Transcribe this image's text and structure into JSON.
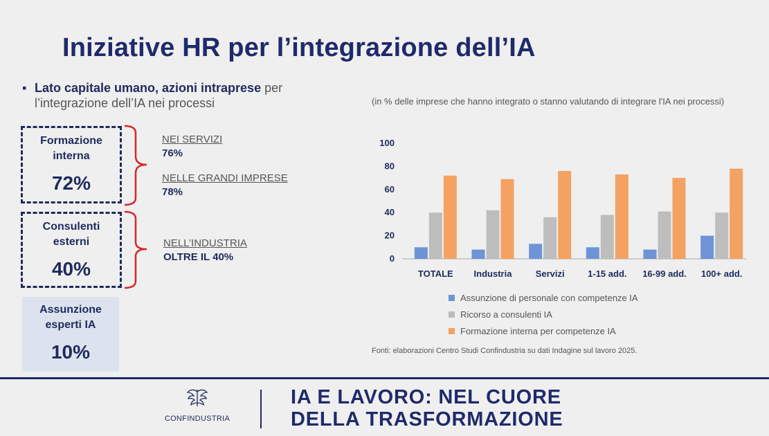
{
  "title": "Iniziative HR per l’integrazione dell’IA",
  "intro": {
    "bold": "Lato capitale umano, azioni intraprese",
    "rest": " per l’integrazione dell’IA nei processi"
  },
  "boxes": [
    {
      "label_1": "Formazione",
      "label_2": "interna",
      "value": "72%"
    },
    {
      "label_1": "Consulenti",
      "label_2": "esterni",
      "value": "40%"
    },
    {
      "label_1": "Assunzione",
      "label_2": "esperti IA",
      "value": "10%"
    }
  ],
  "notes": [
    {
      "label": "NEI SERVIZI",
      "value": "76%"
    },
    {
      "label": "NELLE GRANDI IMPRESE",
      "value": "78%"
    },
    {
      "label": "NELL’INDUSTRIA",
      "value": "OLTRE IL 40%"
    }
  ],
  "chart_subtitle": "(in % delle imprese che hanno integrato o stanno valutando di integrare l'IA nei processi)",
  "chart_data": {
    "type": "bar",
    "categories": [
      "TOTALE",
      "Industria",
      "Servizi",
      "1-15 add.",
      "16-99 add.",
      "100+ add."
    ],
    "series": [
      {
        "name": "Assunzione di personale con competenze IA",
        "color": "#6e93d6",
        "values": [
          10,
          8,
          13,
          10,
          8,
          20
        ]
      },
      {
        "name": "Ricorso a consulenti IA",
        "color": "#bdbdbd",
        "values": [
          40,
          42,
          36,
          38,
          41,
          40
        ]
      },
      {
        "name": "Formazione interna per competenze IA",
        "color": "#f4a261",
        "values": [
          72,
          69,
          76,
          73,
          70,
          78
        ]
      }
    ],
    "yticks": [
      "100",
      "80",
      "60",
      "40",
      "20",
      "0"
    ],
    "ylim": [
      0,
      100
    ],
    "grid": false,
    "legend": "bottom"
  },
  "source": "Fonti: elaborazioni Centro Studi Confindustria su dati Indagine sul lavoro 2025.",
  "footer": {
    "logo_name": "CONFINDUSTRIA",
    "title_line1": "IA E LAVORO: NEL CUORE",
    "title_line2": "DELLA TRASFORMAZIONE"
  },
  "colors": {
    "navy": "#1f2a6b",
    "brace": "#d62828"
  }
}
